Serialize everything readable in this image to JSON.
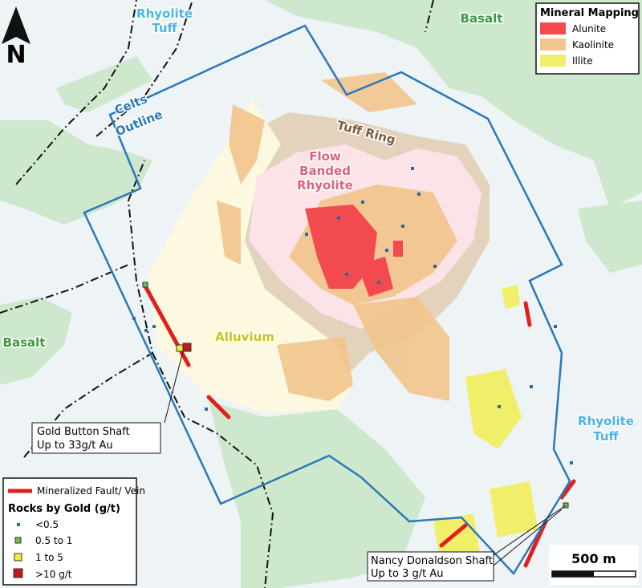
{
  "north_arrow": "N",
  "legend_mineral": {
    "title": "Mineral Mapping",
    "items": [
      "Alunite",
      "Kaolinite",
      "Illite"
    ]
  },
  "legend_rocks": {
    "fault": "Mineralized Fault/ Vein",
    "title": "Rocks by Gold (g/t)",
    "items": [
      "<0.5",
      "0.5  to 1",
      "1 to 5",
      ">10 g/t"
    ]
  },
  "labels": {
    "rhyolite_tuff_top": [
      "Rhyolite",
      "Tuff"
    ],
    "basalt_top": "Basalt",
    "celts_outline": [
      "Celts",
      "Outline"
    ],
    "tuff_ring": "Tuff Ring",
    "flow_banded": [
      "Flow",
      "Banded",
      "Rhyolite"
    ],
    "alluvium": "Alluvium",
    "basalt_left": "Basalt",
    "rhyolite_tuff_right": [
      "Rhyolite",
      "Tuff"
    ]
  },
  "callouts": [
    {
      "lines": [
        "Gold Button Shaft",
        "Up to 33g/t Au"
      ]
    },
    {
      "lines": [
        "Nancy Donaldson Shaft",
        "Up to 3 g/t Au"
      ]
    }
  ],
  "scale_bar": "500 m"
}
